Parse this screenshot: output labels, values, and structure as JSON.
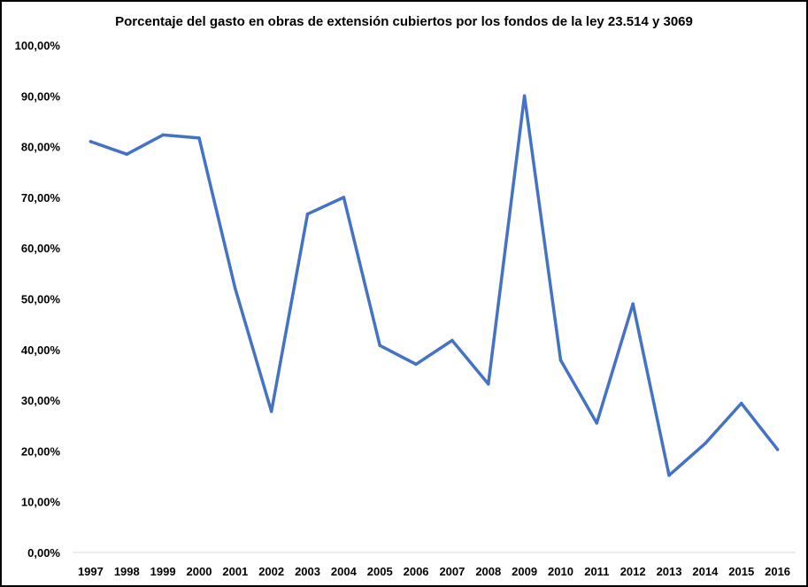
{
  "chart_data": {
    "type": "line",
    "title": "Porcentaje del gasto en obras de extensión cubiertos por los fondos de la ley 23.514 y 3069",
    "xlabel": "",
    "ylabel": "",
    "categories": [
      "1997",
      "1998",
      "1999",
      "2000",
      "2001",
      "2002",
      "2003",
      "2004",
      "2005",
      "2006",
      "2007",
      "2008",
      "2009",
      "2010",
      "2011",
      "2012",
      "2013",
      "2014",
      "2015",
      "2016"
    ],
    "series": [
      {
        "values": [
          81.0,
          78.5,
          82.3,
          81.7,
          52.0,
          27.8,
          66.7,
          70.0,
          40.8,
          37.1,
          41.8,
          33.2,
          90.0,
          37.9,
          25.5,
          49.0,
          15.2,
          21.5,
          29.4,
          20.3
        ]
      }
    ],
    "ylim": [
      0,
      100
    ],
    "yticks": [
      "0,00%",
      "10,00%",
      "20,00%",
      "30,00%",
      "40,00%",
      "50,00%",
      "60,00%",
      "70,00%",
      "80,00%",
      "90,00%",
      "100,00%"
    ],
    "grid": false,
    "legend": "none",
    "line_color": "#4472C4"
  }
}
